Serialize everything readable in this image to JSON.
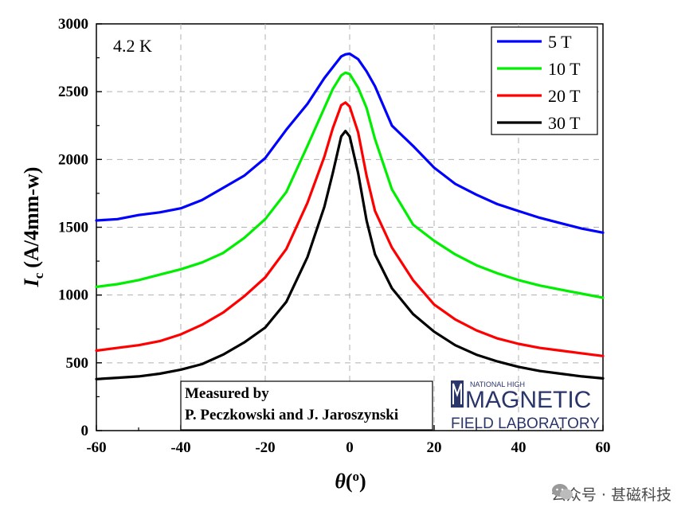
{
  "chart_data": {
    "type": "line",
    "xlabel_symbol": "θ",
    "xlabel_unit": "(o)",
    "ylabel_main": "I",
    "ylabel_sub": "c",
    "ylabel_unit": "(A/4mm-w)",
    "xlim": [
      -60,
      60
    ],
    "ylim": [
      0,
      3000
    ],
    "xticks": [
      -60,
      -40,
      -20,
      0,
      20,
      40,
      60
    ],
    "yticks": [
      0,
      500,
      1000,
      1500,
      2000,
      2500,
      3000
    ],
    "legend_position": "top-right",
    "temperature_label": "4.2 K",
    "x": [
      -60,
      -55,
      -50,
      -45,
      -40,
      -35,
      -30,
      -25,
      -20,
      -15,
      -10,
      -6,
      -4,
      -2,
      -1,
      0,
      2,
      4,
      6,
      10,
      15,
      20,
      25,
      30,
      35,
      40,
      45,
      50,
      55,
      60
    ],
    "series": [
      {
        "name": "5 T",
        "color": "#0000ff",
        "values": [
          1550,
          1560,
          1590,
          1610,
          1640,
          1700,
          1790,
          1880,
          2010,
          2220,
          2410,
          2600,
          2680,
          2760,
          2775,
          2780,
          2740,
          2650,
          2540,
          2250,
          2100,
          1940,
          1820,
          1740,
          1670,
          1620,
          1570,
          1530,
          1490,
          1460
        ]
      },
      {
        "name": "10 T",
        "color": "#00ee00",
        "values": [
          1060,
          1080,
          1110,
          1150,
          1190,
          1240,
          1310,
          1420,
          1560,
          1760,
          2100,
          2380,
          2520,
          2620,
          2640,
          2630,
          2530,
          2380,
          2150,
          1780,
          1520,
          1400,
          1300,
          1220,
          1160,
          1110,
          1070,
          1040,
          1010,
          980
        ]
      },
      {
        "name": "20 T",
        "color": "#ff0000",
        "values": [
          590,
          610,
          630,
          660,
          710,
          780,
          870,
          990,
          1130,
          1340,
          1680,
          2020,
          2230,
          2400,
          2420,
          2390,
          2200,
          1880,
          1620,
          1350,
          1110,
          930,
          820,
          740,
          680,
          640,
          610,
          590,
          570,
          550
        ]
      },
      {
        "name": "30 T",
        "color": "#000000",
        "values": [
          380,
          390,
          400,
          420,
          450,
          490,
          560,
          650,
          760,
          950,
          1280,
          1650,
          1900,
          2170,
          2210,
          2170,
          1900,
          1550,
          1300,
          1050,
          860,
          730,
          630,
          560,
          510,
          470,
          440,
          420,
          400,
          385
        ]
      }
    ]
  },
  "credit_box": {
    "line1": "Measured by",
    "line2": "P. Peczkowski and J. Jaroszynski"
  },
  "logo": {
    "top": "NATIONAL HIGH",
    "middle": "MAGNETIC",
    "bottom": "FIELD LABORATORY"
  },
  "watermark": {
    "text": "公众号 · 甚磁科技"
  }
}
